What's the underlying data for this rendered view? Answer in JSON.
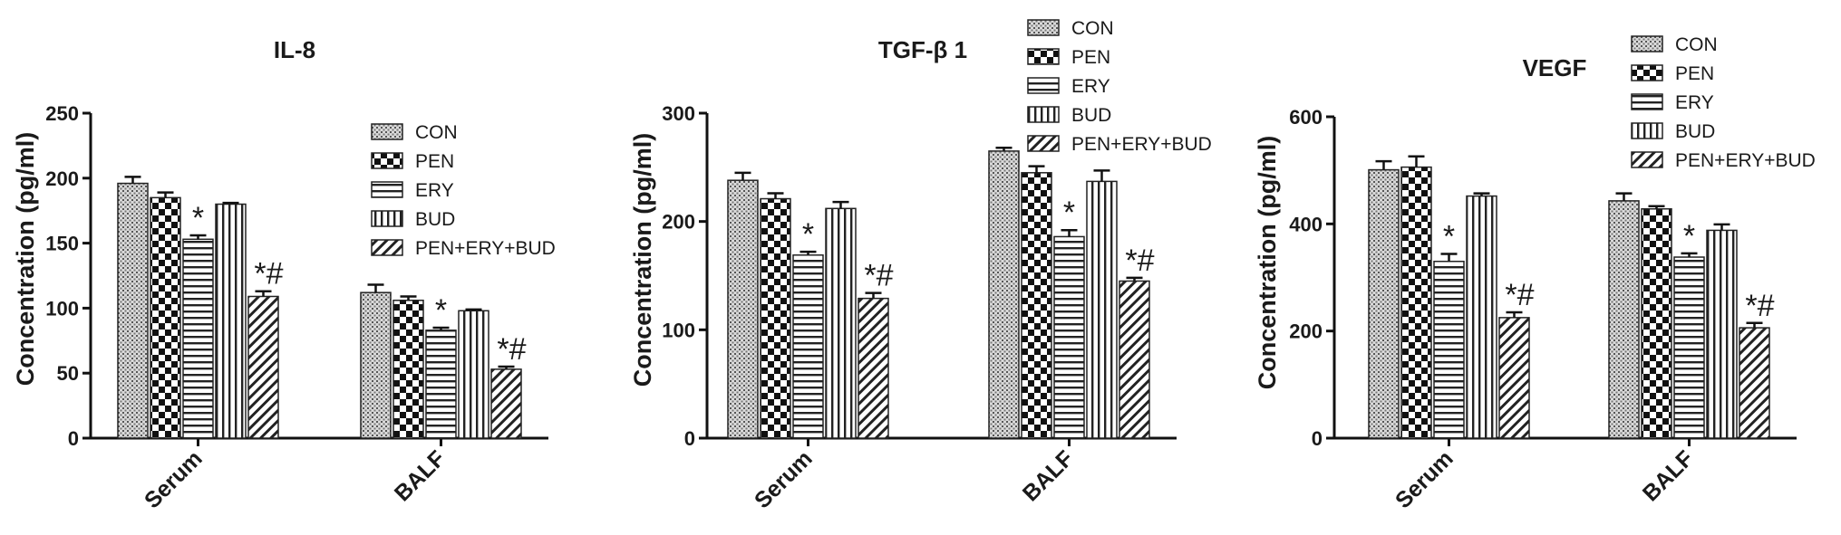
{
  "chart_data": [
    {
      "type": "bar",
      "title": "IL-8",
      "xlabel": "",
      "ylabel": "Concentration (pg/ml)",
      "ylim": [
        0,
        250
      ],
      "yticks": [
        "0",
        "50",
        "100",
        "150",
        "200",
        "250"
      ],
      "categories": [
        "Serum",
        "BALF"
      ],
      "legend_position": "top-right",
      "series": [
        {
          "name": "CON",
          "values": [
            196,
            112
          ],
          "errors": [
            5,
            6
          ]
        },
        {
          "name": "PEN",
          "values": [
            185,
            106
          ],
          "errors": [
            4,
            3
          ]
        },
        {
          "name": "ERY",
          "values": [
            153,
            83
          ],
          "errors": [
            3,
            2
          ]
        },
        {
          "name": "BUD",
          "values": [
            180,
            98
          ],
          "errors": [
            1,
            1
          ]
        },
        {
          "name": "PEN+ERY+BUD",
          "values": [
            109,
            53
          ],
          "errors": [
            4,
            2
          ]
        }
      ],
      "annotations": [
        {
          "series": 2,
          "category": 0,
          "text": "*"
        },
        {
          "series": 4,
          "category": 0,
          "text": "*#"
        },
        {
          "series": 2,
          "category": 1,
          "text": "*"
        },
        {
          "series": 4,
          "category": 1,
          "text": "*#"
        }
      ]
    },
    {
      "type": "bar",
      "title": "TGF-β 1",
      "xlabel": "",
      "ylabel": "Concentration (pg/ml)",
      "ylim": [
        0,
        300
      ],
      "yticks": [
        "0",
        "100",
        "200",
        "300"
      ],
      "categories": [
        "Serum",
        "BALF"
      ],
      "legend_position": "top-right",
      "series": [
        {
          "name": "CON",
          "values": [
            238,
            265
          ],
          "errors": [
            7,
            3
          ]
        },
        {
          "name": "PEN",
          "values": [
            221,
            245
          ],
          "errors": [
            5,
            6
          ]
        },
        {
          "name": "ERY",
          "values": [
            169,
            186
          ],
          "errors": [
            3,
            6
          ]
        },
        {
          "name": "BUD",
          "values": [
            212,
            237
          ],
          "errors": [
            6,
            10
          ]
        },
        {
          "name": "PEN+ERY+BUD",
          "values": [
            129,
            145
          ],
          "errors": [
            5,
            3
          ]
        }
      ],
      "annotations": [
        {
          "series": 2,
          "category": 0,
          "text": "*"
        },
        {
          "series": 4,
          "category": 0,
          "text": "*#"
        },
        {
          "series": 2,
          "category": 1,
          "text": "*"
        },
        {
          "series": 4,
          "category": 1,
          "text": "*#"
        }
      ]
    },
    {
      "type": "bar",
      "title": "VEGF",
      "xlabel": "",
      "ylabel": "Concentration (pg/ml)",
      "ylim": [
        0,
        600
      ],
      "yticks": [
        "0",
        "200",
        "400",
        "600"
      ],
      "categories": [
        "Serum",
        "BALF"
      ],
      "legend_position": "top-right",
      "series": [
        {
          "name": "CON",
          "values": [
            501,
            443
          ],
          "errors": [
            16,
            14
          ]
        },
        {
          "name": "PEN",
          "values": [
            506,
            428
          ],
          "errors": [
            20,
            5
          ]
        },
        {
          "name": "ERY",
          "values": [
            330,
            338
          ],
          "errors": [
            14,
            7
          ]
        },
        {
          "name": "BUD",
          "values": [
            452,
            388
          ],
          "errors": [
            5,
            11
          ]
        },
        {
          "name": "PEN+ERY+BUD",
          "values": [
            225,
            206
          ],
          "errors": [
            10,
            9
          ]
        }
      ],
      "annotations": [
        {
          "series": 2,
          "category": 0,
          "text": "*"
        },
        {
          "series": 4,
          "category": 0,
          "text": "*#"
        },
        {
          "series": 2,
          "category": 1,
          "text": "*"
        },
        {
          "series": 4,
          "category": 1,
          "text": "*#"
        }
      ]
    }
  ]
}
